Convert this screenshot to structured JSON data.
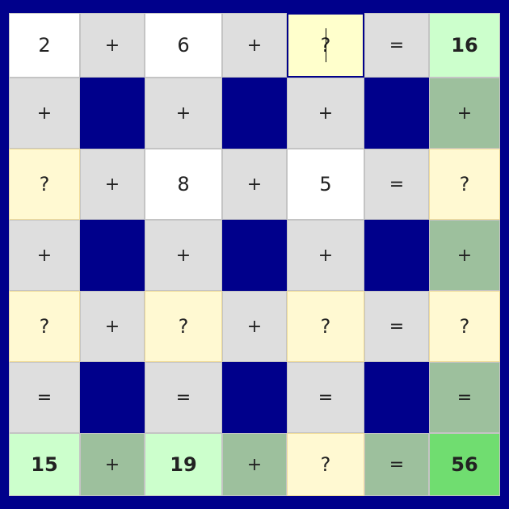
{
  "colors": {
    "background": "#00008b",
    "given": "#ffffff",
    "operator": "#dedede",
    "unknown": "#fff9d2",
    "result": "#ccffcc",
    "result_operator": "#9dc09d",
    "final": "#70dd70",
    "selected_border": "#00008b"
  },
  "selected_cell": {
    "row": 0,
    "col": 4
  },
  "rows": [
    [
      {
        "t": "2",
        "k": "given"
      },
      {
        "t": "+",
        "k": "op"
      },
      {
        "t": "6",
        "k": "given"
      },
      {
        "t": "+",
        "k": "op"
      },
      {
        "t": "?",
        "k": "unknown"
      },
      {
        "t": "=",
        "k": "op"
      },
      {
        "t": "16",
        "k": "result"
      }
    ],
    [
      {
        "t": "+",
        "k": "op"
      },
      {
        "t": "",
        "k": "blank"
      },
      {
        "t": "+",
        "k": "op"
      },
      {
        "t": "",
        "k": "blank"
      },
      {
        "t": "+",
        "k": "op"
      },
      {
        "t": "",
        "k": "blank"
      },
      {
        "t": "+",
        "k": "result-op"
      }
    ],
    [
      {
        "t": "?",
        "k": "unknown"
      },
      {
        "t": "+",
        "k": "op"
      },
      {
        "t": "8",
        "k": "given"
      },
      {
        "t": "+",
        "k": "op"
      },
      {
        "t": "5",
        "k": "given"
      },
      {
        "t": "=",
        "k": "op"
      },
      {
        "t": "?",
        "k": "unknown"
      }
    ],
    [
      {
        "t": "+",
        "k": "op"
      },
      {
        "t": "",
        "k": "blank"
      },
      {
        "t": "+",
        "k": "op"
      },
      {
        "t": "",
        "k": "blank"
      },
      {
        "t": "+",
        "k": "op"
      },
      {
        "t": "",
        "k": "blank"
      },
      {
        "t": "+",
        "k": "result-op"
      }
    ],
    [
      {
        "t": "?",
        "k": "unknown"
      },
      {
        "t": "+",
        "k": "op"
      },
      {
        "t": "?",
        "k": "unknown"
      },
      {
        "t": "+",
        "k": "op"
      },
      {
        "t": "?",
        "k": "unknown"
      },
      {
        "t": "=",
        "k": "op"
      },
      {
        "t": "?",
        "k": "unknown"
      }
    ],
    [
      {
        "t": "=",
        "k": "op"
      },
      {
        "t": "",
        "k": "blank"
      },
      {
        "t": "=",
        "k": "op"
      },
      {
        "t": "",
        "k": "blank"
      },
      {
        "t": "=",
        "k": "op"
      },
      {
        "t": "",
        "k": "blank"
      },
      {
        "t": "=",
        "k": "result-op"
      }
    ],
    [
      {
        "t": "15",
        "k": "result"
      },
      {
        "t": "+",
        "k": "result-op"
      },
      {
        "t": "19",
        "k": "result"
      },
      {
        "t": "+",
        "k": "result-op"
      },
      {
        "t": "?",
        "k": "unknown"
      },
      {
        "t": "=",
        "k": "result-op"
      },
      {
        "t": "56",
        "k": "final"
      }
    ]
  ]
}
